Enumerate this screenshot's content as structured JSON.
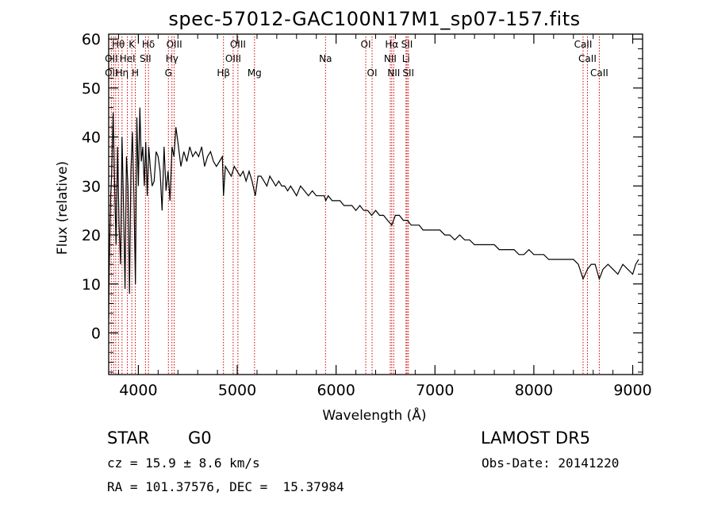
{
  "chart_data": {
    "type": "line",
    "title": "spec-57012-GAC100N17M1_sp07-157.fits",
    "xlabel": "Wavelength (Å)",
    "ylabel": "Flux (relative)",
    "xlim": [
      3700,
      9100
    ],
    "ylim": [
      -8.5,
      61
    ],
    "xticks": [
      4000,
      5000,
      6000,
      7000,
      8000,
      9000
    ],
    "yticks": [
      0,
      10,
      20,
      30,
      40,
      50,
      60
    ],
    "grid": false,
    "line_color": "#000000",
    "marker_color": "#cc0000",
    "series": [
      {
        "x": [
          3700,
          3705,
          3712,
          3720,
          3730,
          3745,
          3760,
          3775,
          3790,
          3805,
          3820,
          3835,
          3850,
          3865,
          3880,
          3895,
          3910,
          3925,
          3940,
          3955,
          3970,
          3985,
          4000,
          4015,
          4030,
          4045,
          4060,
          4075,
          4090,
          4105,
          4120,
          4140,
          4160,
          4180,
          4200,
          4220,
          4240,
          4260,
          4280,
          4300,
          4320,
          4340,
          4360,
          4380,
          4400,
          4430,
          4460,
          4490,
          4520,
          4550,
          4580,
          4610,
          4640,
          4670,
          4700,
          4730,
          4760,
          4790,
          4820,
          4850,
          4861,
          4880,
          4910,
          4940,
          4970,
          5000,
          5030,
          5060,
          5090,
          5120,
          5150,
          5183,
          5210,
          5240,
          5270,
          5300,
          5330,
          5360,
          5390,
          5420,
          5450,
          5480,
          5510,
          5540,
          5570,
          5600,
          5640,
          5680,
          5720,
          5760,
          5800,
          5840,
          5880,
          5895,
          5920,
          5960,
          6000,
          6040,
          6080,
          6120,
          6160,
          6200,
          6240,
          6280,
          6320,
          6360,
          6400,
          6440,
          6480,
          6520,
          6563,
          6600,
          6640,
          6680,
          6720,
          6760,
          6800,
          6840,
          6880,
          6920,
          6960,
          7000,
          7050,
          7100,
          7150,
          7200,
          7250,
          7300,
          7350,
          7400,
          7450,
          7500,
          7550,
          7600,
          7650,
          7700,
          7750,
          7800,
          7850,
          7900,
          7950,
          8000,
          8050,
          8100,
          8150,
          8200,
          8250,
          8300,
          8350,
          8400,
          8450,
          8498,
          8542,
          8580,
          8620,
          8662,
          8700,
          8750,
          8800,
          8850,
          8900,
          8950,
          9000,
          9030,
          9060
        ],
        "y": [
          3,
          12,
          20,
          28,
          32,
          45,
          30,
          18,
          38,
          22,
          14,
          40,
          26,
          9,
          36,
          30,
          8,
          33,
          41,
          28,
          10,
          44,
          30,
          46,
          35,
          38,
          30,
          39,
          28,
          38,
          34,
          30,
          31,
          37,
          36,
          33,
          25,
          38,
          29,
          33,
          27,
          38,
          36,
          42,
          39,
          34,
          37,
          35,
          38,
          36,
          37,
          36,
          38,
          34,
          36,
          37,
          35,
          34,
          35,
          36,
          28,
          34,
          33,
          32,
          34,
          33,
          32,
          33,
          31,
          33,
          31,
          28,
          32,
          32,
          31,
          30,
          32,
          31,
          30,
          31,
          30,
          30,
          29,
          30,
          29,
          28,
          30,
          29,
          28,
          29,
          28,
          28,
          28,
          27,
          28,
          27,
          27,
          27,
          26,
          26,
          26,
          25,
          26,
          25,
          25,
          24,
          25,
          24,
          24,
          23,
          22,
          24,
          24,
          23,
          23,
          22,
          22,
          22,
          21,
          21,
          21,
          21,
          21,
          20,
          20,
          19,
          20,
          19,
          19,
          18,
          18,
          18,
          18,
          18,
          17,
          17,
          17,
          17,
          16,
          16,
          17,
          16,
          16,
          16,
          15,
          15,
          15,
          15,
          15,
          15,
          14,
          11,
          13,
          14,
          14,
          11,
          13,
          14,
          13,
          12,
          14,
          13,
          12,
          14,
          15
        ]
      }
    ],
    "line_markers": [
      {
        "wl": 3727,
        "labels": [
          "OII",
          "OII"
        ]
      },
      {
        "wl": 3750,
        "labels": [
          "Hη"
        ]
      },
      {
        "wl": 3771,
        "labels": [
          ""
        ]
      },
      {
        "wl": 3798,
        "labels": [
          "Hθ"
        ]
      },
      {
        "wl": 3835,
        "labels": [
          "Hη"
        ]
      },
      {
        "wl": 3889,
        "labels": [
          "HeI"
        ]
      },
      {
        "wl": 3934,
        "labels": [
          "K"
        ]
      },
      {
        "wl": 3969,
        "labels": [
          "H"
        ]
      },
      {
        "wl": 4072,
        "labels": [
          "SII"
        ]
      },
      {
        "wl": 4102,
        "labels": [
          "Hδ"
        ]
      },
      {
        "wl": 4304,
        "labels": [
          "G"
        ]
      },
      {
        "wl": 4340,
        "labels": [
          "Hγ"
        ]
      },
      {
        "wl": 4363,
        "labels": [
          "OIII"
        ]
      },
      {
        "wl": 4861,
        "labels": [
          "Hβ"
        ]
      },
      {
        "wl": 4959,
        "labels": [
          "OIII"
        ]
      },
      {
        "wl": 5007,
        "labels": [
          "OIII"
        ]
      },
      {
        "wl": 5175,
        "labels": [
          "Mg"
        ]
      },
      {
        "wl": 5893,
        "labels": [
          "Na"
        ]
      },
      {
        "wl": 6300,
        "labels": [
          "OI"
        ]
      },
      {
        "wl": 6364,
        "labels": [
          "OI"
        ]
      },
      {
        "wl": 6548,
        "labels": [
          "NII"
        ]
      },
      {
        "wl": 6563,
        "labels": [
          "Hα"
        ]
      },
      {
        "wl": 6583,
        "labels": [
          "NII"
        ]
      },
      {
        "wl": 6707,
        "labels": [
          "Li"
        ]
      },
      {
        "wl": 6717,
        "labels": [
          "SII"
        ]
      },
      {
        "wl": 6731,
        "labels": [
          "SII"
        ]
      },
      {
        "wl": 8498,
        "labels": [
          "CaII"
        ]
      },
      {
        "wl": 8542,
        "labels": [
          "CaII"
        ]
      },
      {
        "wl": 8662,
        "labels": [
          "CaII"
        ]
      }
    ],
    "marker_label_rows": [
      {
        "row": 0,
        "items": [
          {
            "text": "Hθ",
            "wl": 3798
          },
          {
            "text": "K",
            "wl": 3934
          },
          {
            "text": "Hδ",
            "wl": 4102
          },
          {
            "text": "OIII",
            "wl": 4363
          },
          {
            "text": "OIII",
            "wl": 5007
          },
          {
            "text": "OI",
            "wl": 6300
          },
          {
            "text": "Hα",
            "wl": 6563
          },
          {
            "text": "SII",
            "wl": 6717
          },
          {
            "text": "CaII",
            "wl": 8498
          }
        ]
      },
      {
        "row": 1,
        "items": [
          {
            "text": "OII",
            "wl": 3727
          },
          {
            "text": "HeI",
            "wl": 3889
          },
          {
            "text": "SII",
            "wl": 4072
          },
          {
            "text": "Hγ",
            "wl": 4340
          },
          {
            "text": "OIII",
            "wl": 4959
          },
          {
            "text": "Na",
            "wl": 5893
          },
          {
            "text": "NII",
            "wl": 6548
          },
          {
            "text": "Li",
            "wl": 6707
          },
          {
            "text": "CaII",
            "wl": 8542
          }
        ]
      },
      {
        "row": 2,
        "items": [
          {
            "text": "OII",
            "wl": 3727
          },
          {
            "text": "Hη",
            "wl": 3835
          },
          {
            "text": "H",
            "wl": 3969
          },
          {
            "text": "G",
            "wl": 4304
          },
          {
            "text": "Hβ",
            "wl": 4861
          },
          {
            "text": "Mg",
            "wl": 5175
          },
          {
            "text": "OI",
            "wl": 6364
          },
          {
            "text": "NII",
            "wl": 6583
          },
          {
            "text": "SII",
            "wl": 6731
          },
          {
            "text": "CaII",
            "wl": 8662
          }
        ]
      }
    ]
  },
  "info": {
    "class_label": "STAR",
    "subclass": "G0",
    "survey": "LAMOST DR5",
    "cz": "cz = 15.9 ± 8.6 km/s",
    "obs_date": "Obs-Date: 20141220",
    "coords": "RA = 101.37576, DEC =  15.37984"
  }
}
